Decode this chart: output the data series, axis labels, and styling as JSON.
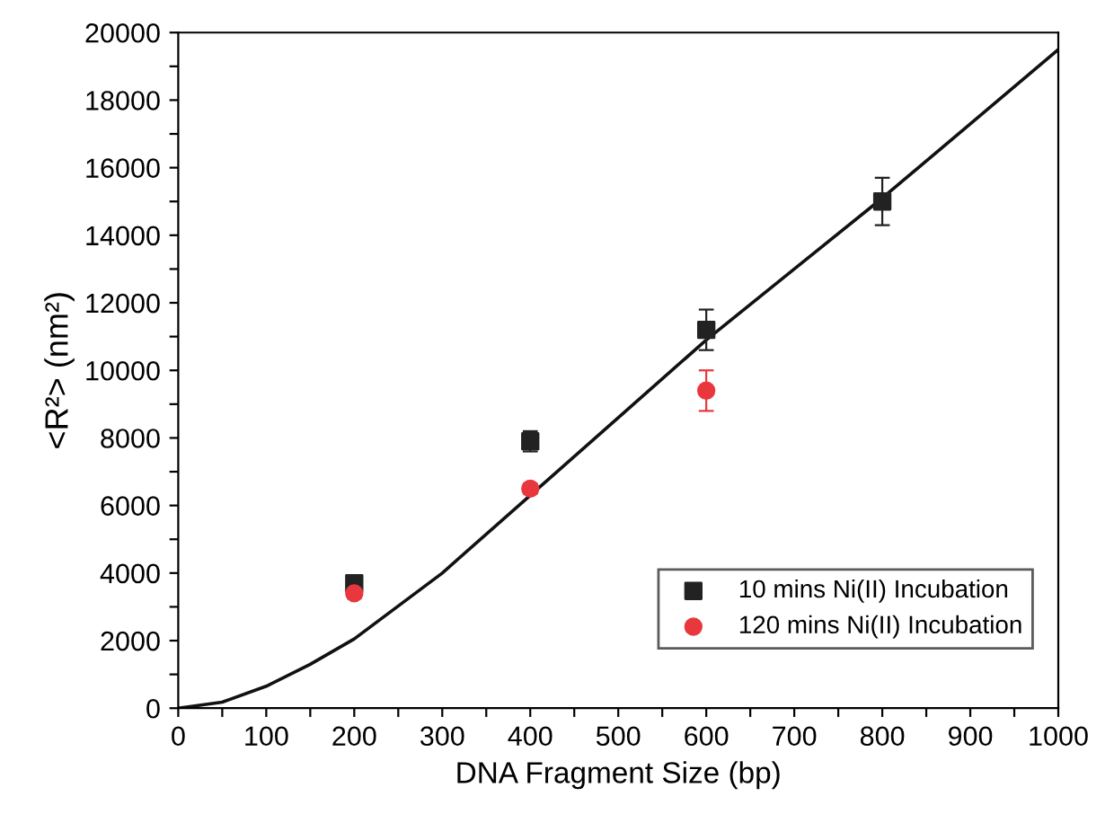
{
  "chart_data": {
    "type": "scatter",
    "xlabel": "DNA Fragment Size (bp)",
    "ylabel": "<R²> (nm²)",
    "xlim": [
      0,
      1000
    ],
    "ylim": [
      0,
      20000
    ],
    "xticks": [
      0,
      {
        "value": 50,
        "label": null
      },
      100,
      {
        "value": 150,
        "label": null
      },
      200,
      {
        "value": 250,
        "label": null
      },
      300,
      {
        "value": 350,
        "label": null
      },
      400,
      {
        "value": 450,
        "label": null
      },
      500,
      {
        "value": 550,
        "label": null
      },
      600,
      {
        "value": 650,
        "label": null
      },
      700,
      {
        "value": 750,
        "label": null
      },
      800,
      {
        "value": 850,
        "label": null
      },
      900,
      {
        "value": 950,
        "label": null
      },
      1000
    ],
    "yticks": [
      0,
      {
        "value": 1000,
        "label": null
      },
      2000,
      {
        "value": 3000,
        "label": null
      },
      4000,
      {
        "value": 5000,
        "label": null
      },
      6000,
      {
        "value": 7000,
        "label": null
      },
      8000,
      {
        "value": 9000,
        "label": null
      },
      10000,
      {
        "value": 11000,
        "label": null
      },
      12000,
      {
        "value": 13000,
        "label": null
      },
      14000,
      {
        "value": 15000,
        "label": null
      },
      16000,
      {
        "value": 17000,
        "label": null
      },
      18000,
      {
        "value": 19000,
        "label": null
      },
      20000
    ],
    "grid": false,
    "legend": "bottom right",
    "series": [
      {
        "name": "10 mins Ni(II) Incubation",
        "marker": "square",
        "color": "#222222",
        "x": [
          200,
          400,
          600,
          800
        ],
        "values": [
          3700,
          7900,
          11200,
          15000
        ],
        "errors": [
          150,
          300,
          600,
          700
        ]
      },
      {
        "name": "120 mins Ni(II) Incubation",
        "marker": "circle",
        "color": "#e8383d",
        "x": [
          200,
          400,
          600
        ],
        "values": [
          3400,
          6500,
          9400
        ],
        "errors": [
          150,
          150,
          600
        ]
      },
      {
        "type": "line",
        "marker": "none",
        "line_style": "solid",
        "color": "#111111",
        "x": [
          0,
          50,
          100,
          150,
          200,
          300,
          400,
          500,
          600,
          700,
          800,
          900,
          1000
        ],
        "values": [
          0,
          180,
          650,
          1300,
          2050,
          4000,
          6300,
          8600,
          10900,
          13000,
          15100,
          17300,
          19500
        ]
      }
    ]
  }
}
